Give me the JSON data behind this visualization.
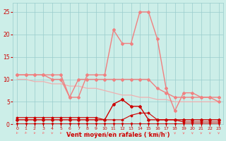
{
  "x": [
    0,
    1,
    2,
    3,
    4,
    5,
    6,
    7,
    8,
    9,
    10,
    11,
    12,
    13,
    14,
    15,
    16,
    17,
    18,
    19,
    20,
    21,
    22,
    23
  ],
  "line_rafales": [
    11,
    11,
    11,
    11,
    11,
    11,
    6,
    6,
    11,
    11,
    11,
    21,
    18,
    18,
    25,
    25,
    19,
    8,
    3,
    7,
    7,
    6,
    6,
    6
  ],
  "line_moyen": [
    11,
    11,
    11,
    11,
    10,
    10,
    6,
    10,
    10,
    10,
    10,
    10,
    10,
    10,
    10,
    10,
    8,
    7,
    6,
    6,
    6,
    6,
    6,
    5
  ],
  "line_trend": [
    10,
    10,
    9.5,
    9.5,
    9,
    9,
    8.5,
    8.5,
    8,
    8,
    7.5,
    7,
    6.5,
    6.5,
    6,
    6,
    5.5,
    5.5,
    5,
    5,
    5,
    5,
    5,
    5
  ],
  "line_freq": [
    1,
    1,
    1,
    1,
    1,
    1,
    1,
    1,
    1,
    1,
    1,
    4.5,
    5.5,
    4,
    4,
    1,
    1,
    1,
    1,
    1,
    1,
    1,
    1,
    1
  ],
  "line_dir": [
    1.5,
    1.5,
    1.5,
    1.5,
    1.5,
    1.5,
    1.5,
    1.5,
    1.5,
    1.5,
    1,
    1,
    1,
    2,
    2.5,
    2.5,
    1,
    1,
    1,
    0.5,
    0.5,
    0.5,
    0.5,
    0.5
  ],
  "line_near_zero": [
    0.2,
    0.2,
    0.2,
    0.2,
    0.2,
    0.2,
    0.2,
    0.2,
    0.2,
    0.2,
    0.2,
    0.2,
    0.2,
    0.2,
    0.2,
    0.2,
    0.2,
    0.2,
    0.2,
    0.2,
    0.2,
    0.2,
    0.2,
    0.2
  ],
  "bg_color": "#cceee8",
  "grid_color": "#99cccc",
  "line_color_light": "#f08080",
  "line_color_dark": "#cc0000",
  "line_color_trend": "#f0b0b0",
  "xlabel": "Vent moyen/en rafales ( km/h )",
  "xlabel_color": "#cc0000",
  "yticks": [
    0,
    5,
    10,
    15,
    20,
    25
  ],
  "xtick_labels": [
    "0",
    "1",
    "2",
    "3",
    "4",
    "5",
    "6",
    "7",
    "8",
    "9",
    "10",
    "11",
    "12",
    "13",
    "14",
    "15",
    "16",
    "17",
    "18",
    "19",
    "20",
    "21",
    "22",
    "23"
  ],
  "ylim": [
    0,
    27
  ],
  "arrow_angles": [
    225,
    240,
    210,
    230,
    200,
    210,
    195,
    180,
    165,
    170,
    200,
    195,
    185,
    190,
    195,
    200,
    185,
    180,
    175,
    185,
    185,
    190,
    185,
    185
  ]
}
